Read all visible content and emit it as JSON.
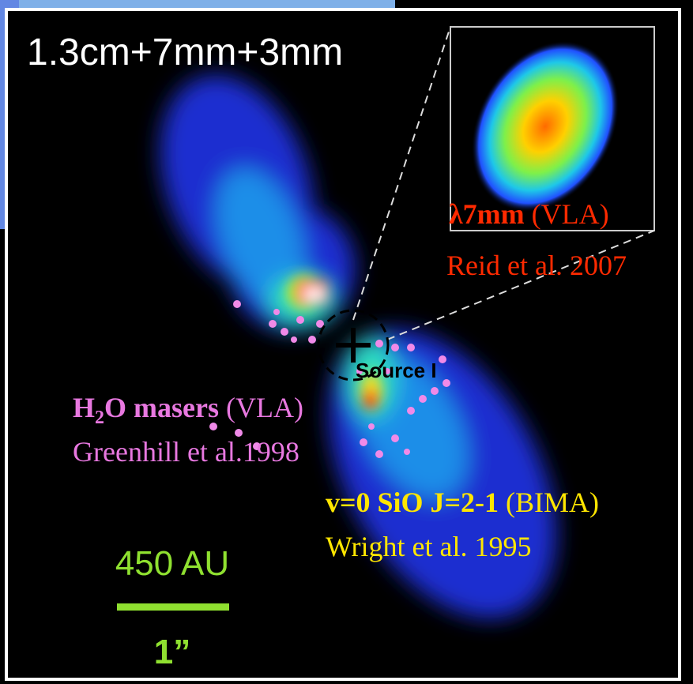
{
  "panel_label": "1.3cm+7mm+3mm",
  "inset": {
    "line": "λ7mm",
    "instrument": "(VLA)",
    "reference": "Reid et al. 2007"
  },
  "source_label": "Source I",
  "masers": {
    "molecule_h": "H",
    "molecule_sub": "2",
    "molecule_rest": "O masers",
    "instrument": "(VLA)",
    "reference": "Greenhill et al.1998"
  },
  "sio": {
    "line": "v=0 SiO J=2-1",
    "instrument": "(BIMA)",
    "reference": "Wright et al. 1995"
  },
  "scale_bar": {
    "length_label": "450 AU",
    "angle_label": "1”"
  }
}
